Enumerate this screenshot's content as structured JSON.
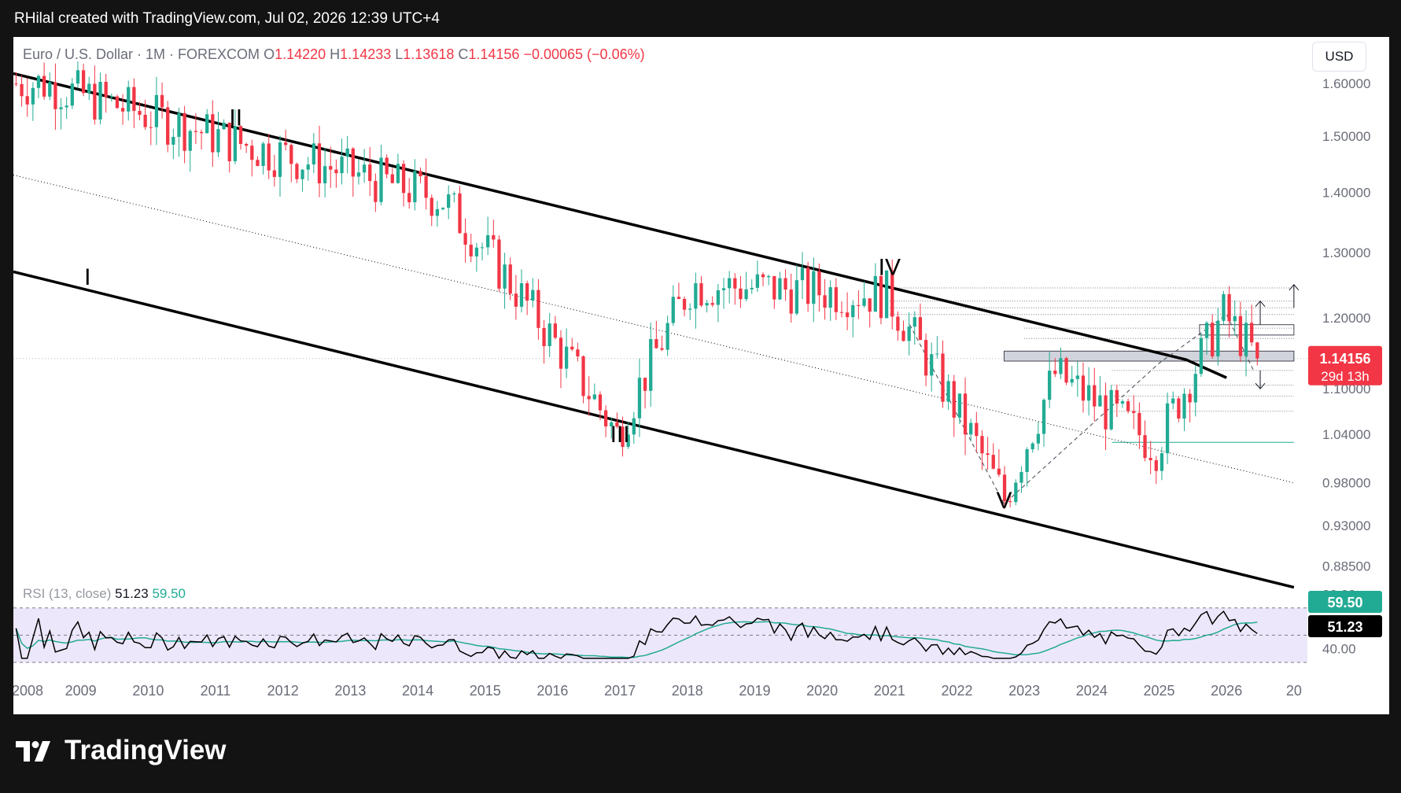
{
  "header": {
    "caption": "RHilal created with TradingView.com, Jul 02, 2026 12:39 UTC+4"
  },
  "legend": {
    "symbol": "Euro / U.S. Dollar · 1M · FOREXCOM",
    "open_label": "O",
    "open": "1.14220",
    "high_label": "H",
    "high": "1.14233",
    "low_label": "L",
    "low": "1.13618",
    "close_label": "C",
    "close": "1.14156",
    "change": "−0.00065 (−0.06%)"
  },
  "currency_button": "USD",
  "price_badge": {
    "price": "1.14156",
    "countdown": "29d 13h",
    "color": "#f23645"
  },
  "rsi": {
    "label": "RSI (13, close)",
    "value": "51.23",
    "ma_value": "59.50",
    "line_color": "#000000",
    "ma_color": "#22ab94",
    "band_color": "#ede7fb"
  },
  "footer": {
    "brand": "TradingView",
    "logo_icon": "tradingview-logo-icon"
  },
  "colors": {
    "up": "#22ab94",
    "down": "#f23645",
    "channel": "#000000"
  },
  "chart_data": {
    "type": "candlestick",
    "title": "Euro / U.S. Dollar · 1M · FOREXCOM",
    "x_axis": {
      "ticks": [
        "2008",
        "2009",
        "2010",
        "2011",
        "2012",
        "2013",
        "2014",
        "2015",
        "2016",
        "2017",
        "2018",
        "2019",
        "2020",
        "2021",
        "2022",
        "2023",
        "2024",
        "2025",
        "2026",
        "20"
      ]
    },
    "y_axis": {
      "ticks": [
        "1.60000",
        "1.50000",
        "1.40000",
        "1.30000",
        "1.20000",
        "1.10000",
        "1.04000",
        "0.98000",
        "0.93000",
        "0.88500",
        "80.00",
        "40.00"
      ],
      "scale": "log",
      "range": [
        0.855,
        1.63
      ]
    },
    "wave_labels": [
      {
        "label": "I",
        "date": 2009.1,
        "price": 1.25
      },
      {
        "label": "II",
        "date": 2011.3,
        "price": 1.52
      },
      {
        "label": "III",
        "date": 2017.0,
        "price": 1.03
      },
      {
        "label": "IV",
        "date": 2021.0,
        "price": 1.265
      },
      {
        "label": "V",
        "date": 2022.7,
        "price": 0.95
      }
    ],
    "channel": {
      "upper": [
        [
          2008.0,
          1.62
        ],
        [
          2025.4,
          1.14
        ],
        [
          2026.0,
          1.115
        ]
      ],
      "middle": [
        [
          2008.0,
          1.43
        ],
        [
          2027.0,
          0.98
        ]
      ],
      "lower": [
        [
          2008.0,
          1.27
        ],
        [
          2027.0,
          0.862
        ]
      ]
    },
    "key_points": [
      {
        "date": 2008.5,
        "price": 1.6
      },
      {
        "date": 2011.3,
        "price": 1.49
      },
      {
        "date": 2014.4,
        "price": 1.39
      },
      {
        "date": 2017.0,
        "price": 1.04
      },
      {
        "date": 2018.1,
        "price": 1.25
      },
      {
        "date": 2021.0,
        "price": 1.235
      },
      {
        "date": 2022.75,
        "price": 0.96
      },
      {
        "date": 2023.5,
        "price": 1.12
      },
      {
        "date": 2025.0,
        "price": 1.025
      },
      {
        "date": 2026.0,
        "price": 1.205
      },
      {
        "date": 2026.5,
        "price": 1.1416
      }
    ],
    "horizontal_levels": [
      1.245,
      1.225,
      1.215,
      1.205,
      1.185,
      1.17,
      1.15,
      1.125,
      1.105,
      1.09,
      1.07,
      1.03
    ],
    "current_price": 1.14156,
    "rsi_ylim": [
      30,
      82
    ],
    "rsi_levels": [
      70,
      50,
      30
    ]
  }
}
